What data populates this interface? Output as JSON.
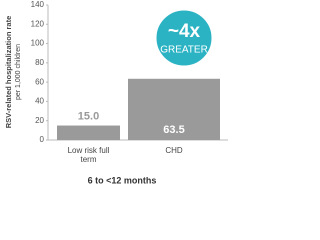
{
  "chart_data": {
    "type": "bar",
    "y_label": "RSV-related hospitalization rate",
    "y_sublabel": "per 1,000 children",
    "x_label": "6 to <12 months",
    "categories": [
      "Low risk full term",
      "CHD"
    ],
    "values": [
      15.0,
      63.5
    ],
    "value_labels": [
      "15.0",
      "63.5"
    ],
    "color": "#9a9a9a",
    "ylim": [
      0,
      140
    ],
    "yticks": [
      0,
      20,
      40,
      60,
      80,
      100,
      120,
      140
    ],
    "grid": false,
    "annotation": {
      "text": "~4x",
      "subtext": "GREATER",
      "color": "#2bb3c4"
    }
  }
}
